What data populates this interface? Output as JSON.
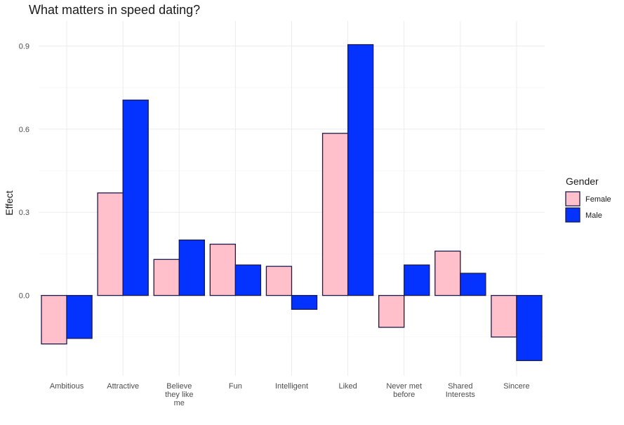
{
  "chart_data": {
    "type": "bar",
    "title": "What matters in speed dating?",
    "xlabel": "",
    "ylabel": "Effect",
    "categories": [
      [
        "Ambitious"
      ],
      [
        "Attractive"
      ],
      [
        "Believe",
        "they like",
        "me"
      ],
      [
        "Fun"
      ],
      [
        "Intelligent"
      ],
      [
        "Liked"
      ],
      [
        "Never met",
        "before"
      ],
      [
        "Shared",
        "Interests"
      ],
      [
        "Sincere"
      ]
    ],
    "series": [
      {
        "name": "Female",
        "color": "#ffc0cb",
        "values": [
          -0.175,
          0.37,
          0.13,
          0.185,
          0.105,
          0.585,
          -0.115,
          0.16,
          -0.15
        ]
      },
      {
        "name": "Male",
        "color": "#0433ff",
        "values": [
          -0.155,
          0.705,
          0.2,
          0.11,
          -0.05,
          0.905,
          0.11,
          0.08,
          -0.235
        ]
      }
    ],
    "ylim": [
      -0.29,
      0.99
    ],
    "yticks": [
      0.0,
      0.3,
      0.6,
      0.9
    ],
    "ytick_labels": [
      "0.0",
      "0.3",
      "0.6",
      "0.9"
    ],
    "grid": true,
    "legend": {
      "title": "Gender",
      "position": "right"
    },
    "bar_outline_color": "#1a1a4a"
  }
}
